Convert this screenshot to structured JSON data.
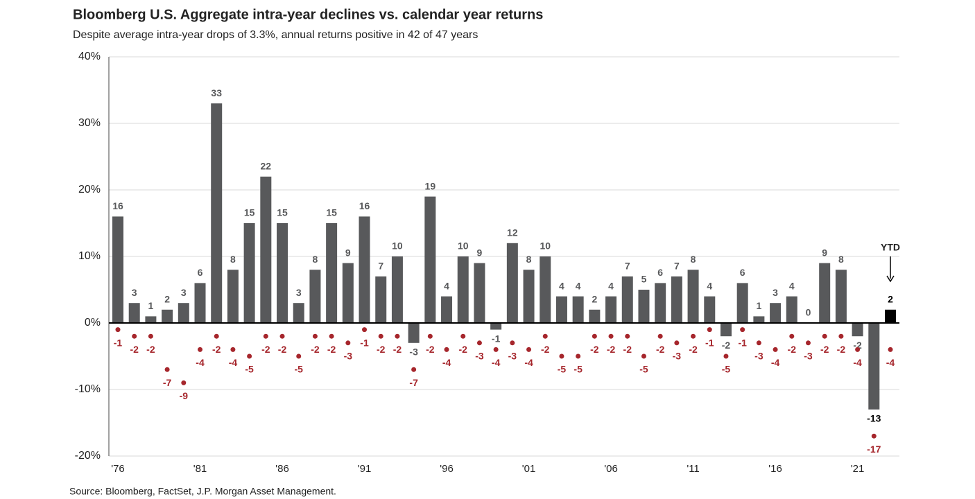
{
  "chart_data": {
    "type": "bar",
    "title": "Bloomberg U.S. Aggregate intra-year declines vs. calendar year returns",
    "subtitle": "Despite average intra-year drops of 3.3%, annual returns positive in 42 of 47 years",
    "source": "Source: Bloomberg, FactSet, J.P. Morgan Asset Management.",
    "annotation": "YTD",
    "categories": [
      "'76",
      null,
      null,
      null,
      null,
      "'81",
      null,
      null,
      null,
      null,
      "'86",
      null,
      null,
      null,
      null,
      "'91",
      null,
      null,
      null,
      null,
      "'96",
      null,
      null,
      null,
      null,
      "'01",
      null,
      null,
      null,
      null,
      "'06",
      null,
      null,
      null,
      null,
      "'11",
      null,
      null,
      null,
      null,
      "'16",
      null,
      null,
      null,
      null,
      "'21",
      null,
      null
    ],
    "series": [
      {
        "type": "bar",
        "color": "#58595b",
        "highlight_color": "#000000",
        "values": [
          16,
          3,
          1,
          2,
          3,
          6,
          33,
          8,
          15,
          22,
          15,
          3,
          8,
          15,
          9,
          16,
          7,
          10,
          -3,
          19,
          4,
          10,
          9,
          -1,
          12,
          8,
          10,
          4,
          4,
          2,
          4,
          7,
          5,
          6,
          7,
          8,
          4,
          -2,
          6,
          1,
          3,
          4,
          0,
          9,
          8,
          -2,
          -13,
          2
        ]
      },
      {
        "type": "scatter",
        "color": "#a6262c",
        "values": [
          -1,
          -2,
          -2,
          -7,
          -9,
          -4,
          -2,
          -4,
          -5,
          -2,
          -2,
          -5,
          -2,
          -2,
          -3,
          -1,
          -2,
          -2,
          -7,
          -2,
          -4,
          -2,
          -3,
          -4,
          -3,
          -4,
          -2,
          -5,
          -5,
          -2,
          -2,
          -2,
          -5,
          -2,
          -3,
          -2,
          -1,
          -5,
          -1,
          -3,
          -4,
          -2,
          -3,
          -2,
          -2,
          -4,
          -17,
          -4
        ]
      }
    ],
    "ylim": [
      -20,
      40
    ],
    "yticks": [
      {
        "value": -20,
        "label": "-20%"
      },
      {
        "value": -10,
        "label": "-10%"
      },
      {
        "value": 0,
        "label": "0%"
      },
      {
        "value": 10,
        "label": "10%"
      },
      {
        "value": 20,
        "label": "20%"
      },
      {
        "value": 30,
        "label": "30%"
      },
      {
        "value": 40,
        "label": "40%"
      }
    ],
    "grid": true
  }
}
